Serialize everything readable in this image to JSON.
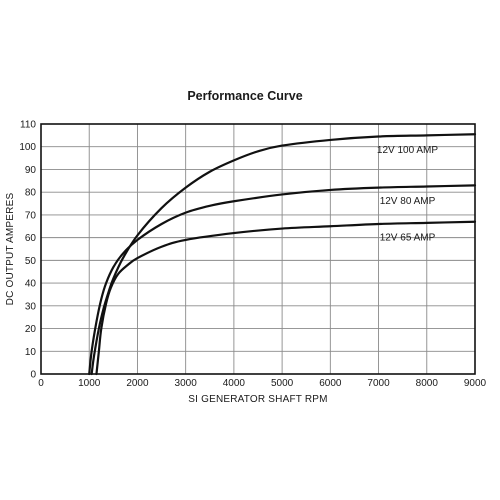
{
  "chart_data": {
    "type": "line",
    "title": "Performance Curve",
    "xlabel": "SI GENERATOR SHAFT RPM",
    "ylabel": "DC OUTPUT AMPERES",
    "xlim": [
      0,
      9000
    ],
    "ylim": [
      0,
      110
    ],
    "xticks": [
      "0",
      "1000",
      "2000",
      "3000",
      "4000",
      "5000",
      "6000",
      "7000",
      "8000",
      "9000"
    ],
    "yticks": [
      "0",
      "10",
      "20",
      "30",
      "40",
      "50",
      "60",
      "70",
      "80",
      "90",
      "100",
      "110"
    ],
    "grid": true,
    "series": [
      {
        "name": "12V 100 AMP",
        "x": [
          1050,
          1100,
          1200,
          1300,
          1400,
          1500,
          1700,
          2000,
          2500,
          3000,
          3500,
          4000,
          4500,
          5000,
          6000,
          7000,
          8000,
          9000
        ],
        "y": [
          0,
          8,
          20,
          29,
          36,
          42,
          51,
          61,
          73,
          82,
          89,
          94,
          98,
          100.5,
          103,
          104.5,
          105,
          105.5
        ]
      },
      {
        "name": "12V 80 AMP",
        "x": [
          1000,
          1050,
          1150,
          1250,
          1350,
          1500,
          1700,
          2000,
          2500,
          3000,
          3500,
          4000,
          5000,
          6000,
          7000,
          8000,
          9000
        ],
        "y": [
          0,
          10,
          23,
          33,
          40,
          47,
          53,
          59,
          66,
          71,
          74,
          76,
          79,
          81,
          82,
          82.5,
          83
        ]
      },
      {
        "name": "12V 65 AMP",
        "x": [
          1150,
          1200,
          1250,
          1350,
          1450,
          1600,
          1800,
          2000,
          2500,
          3000,
          4000,
          5000,
          6000,
          7000,
          8000,
          9000
        ],
        "y": [
          0,
          10,
          20,
          31,
          38,
          44,
          48,
          51,
          56,
          59,
          62,
          64,
          65,
          66,
          66.5,
          67
        ]
      }
    ]
  }
}
